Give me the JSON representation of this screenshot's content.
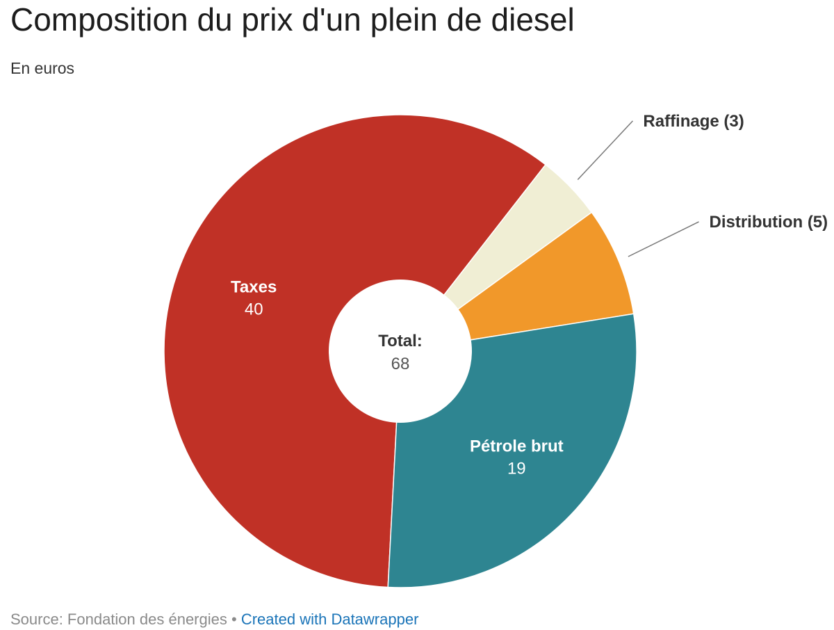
{
  "chart_data": {
    "type": "pie",
    "title": "Composition du prix d'un plein de diesel",
    "subtitle": "En euros",
    "center_label": "Total:",
    "center_value": "68",
    "slices": [
      {
        "name": "Taxes",
        "value": 40,
        "color": "#c03126",
        "label_position": "inside",
        "label_color": "#ffffff"
      },
      {
        "name": "Raffinage",
        "value": 3,
        "color": "#f0eed4",
        "label_position": "outside",
        "label_color": "#333333"
      },
      {
        "name": "Distribution",
        "value": 5,
        "color": "#f1982a",
        "label_position": "outside",
        "label_color": "#333333"
      },
      {
        "name": "Pétrole brut",
        "value": 19,
        "color": "#2e8591",
        "label_position": "inside",
        "label_color": "#ffffff"
      }
    ],
    "outside_labels": [
      "Raffinage (3)",
      "Distribution (5)"
    ]
  },
  "footer": {
    "source": "Source: Fondation des énergies",
    "separator": "•",
    "credit": "Created with Datawrapper"
  }
}
